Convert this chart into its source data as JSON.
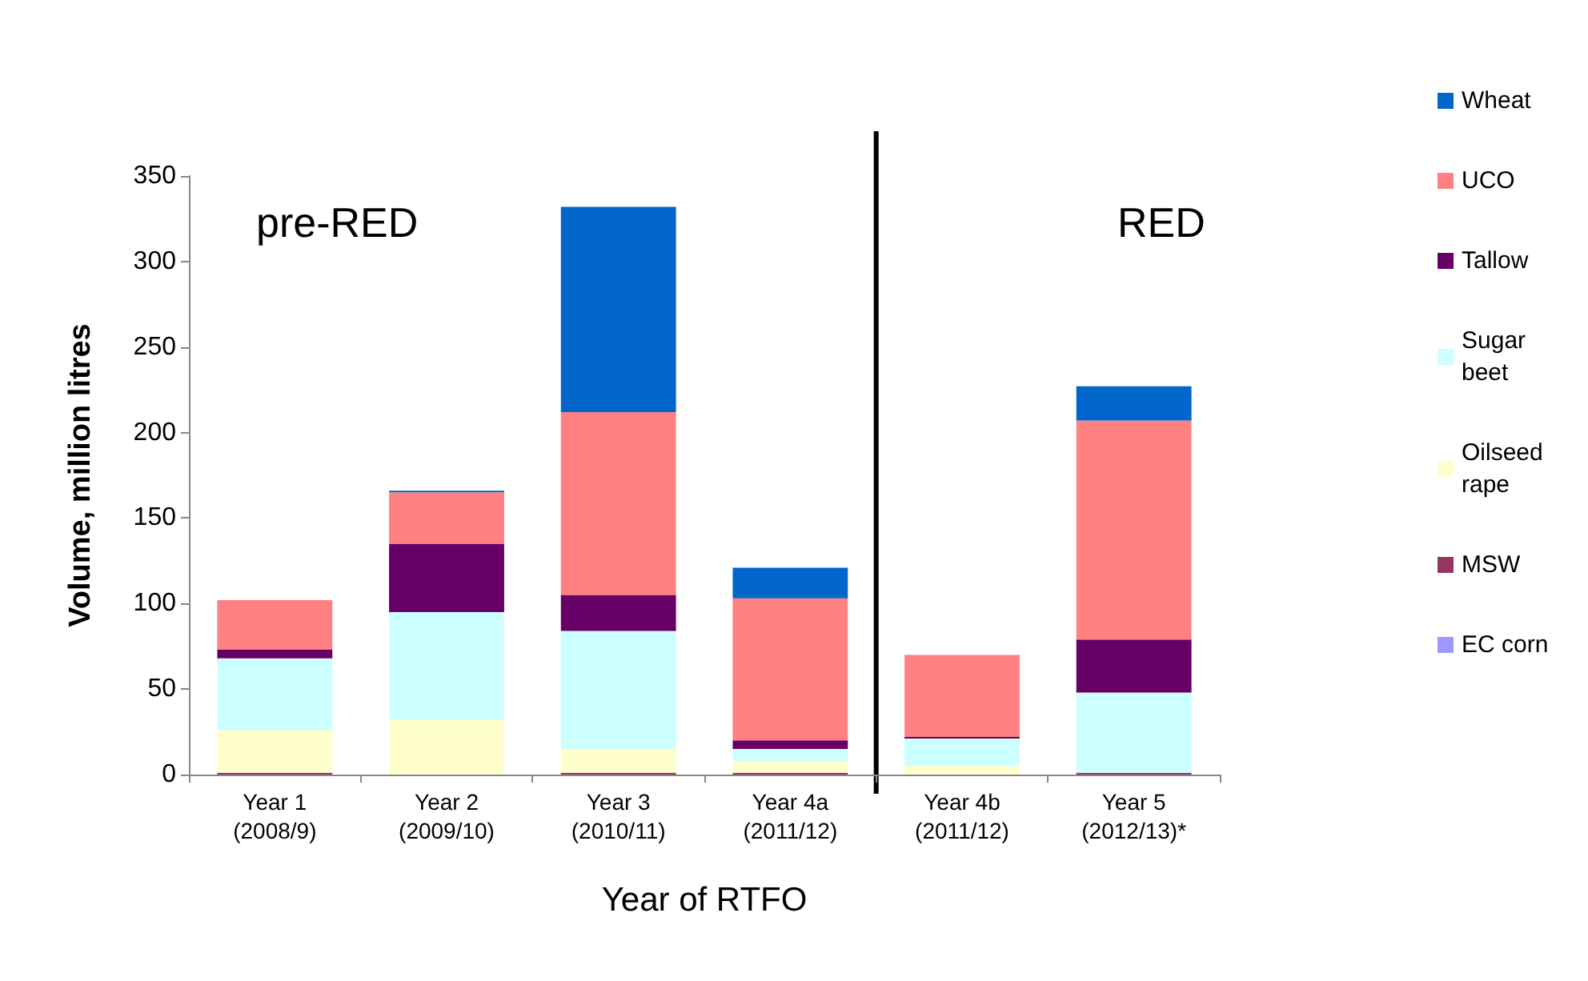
{
  "chart_data": {
    "type": "bar",
    "stacked": true,
    "xlabel": "Year of RTFO",
    "ylabel": "Volume, million litres",
    "categories": [
      "Year 1\n(2008/9)",
      "Year 2\n(2009/10)",
      "Year 3\n(2010/11)",
      "Year 4a\n(2011/12)",
      "Year 4b\n(2011/12)",
      "Year 5\n(2012/13)*"
    ],
    "series": [
      {
        "name": "EC corn",
        "color": "#9999ff",
        "values": [
          0,
          0,
          0,
          0,
          0,
          0
        ]
      },
      {
        "name": "MSW",
        "color": "#993366",
        "values": [
          1,
          0,
          1,
          1,
          0,
          1
        ]
      },
      {
        "name": "Oilseed rape",
        "color": "#ffffcc",
        "values": [
          25,
          32,
          14,
          7,
          5,
          null
        ]
      },
      {
        "name": "Sugar beet",
        "color": "#ccffff",
        "values": [
          42,
          63,
          69,
          7,
          16,
          47
        ]
      },
      {
        "name": "Tallow",
        "color": "#660066",
        "values": [
          5,
          40,
          21,
          5,
          1,
          31
        ]
      },
      {
        "name": "UCO",
        "color": "#ff8080",
        "values": [
          29,
          30,
          107,
          83,
          48,
          128
        ]
      },
      {
        "name": "Wheat",
        "color": "#0066cc",
        "values": [
          0,
          1,
          120,
          18,
          0,
          20
        ]
      }
    ],
    "ylim": [
      0,
      350
    ],
    "yticks": [
      0,
      50,
      100,
      150,
      200,
      250,
      300,
      350
    ],
    "legend": "right",
    "annotations": [
      "pre-RED",
      "RED"
    ]
  }
}
